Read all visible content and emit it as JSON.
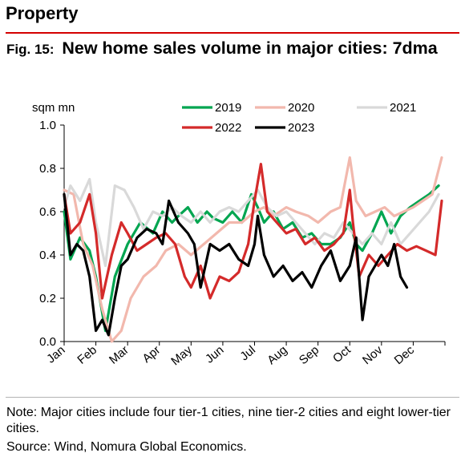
{
  "header": {
    "section": "Property",
    "fig_label": "Fig. 15:",
    "fig_title": "New home sales volume in major cities: 7dma"
  },
  "footer": {
    "note": "Note: Major cities include four tier-1 cities, nine tier-2 cities and eight lower-tier cities.",
    "source": "Source: Wind, Nomura Global Economics."
  },
  "chart_data": {
    "type": "line",
    "ylabel": "sqm mn",
    "ylim": [
      0.0,
      1.0
    ],
    "yticks": [
      "0.0",
      "0.2",
      "0.4",
      "0.6",
      "0.8",
      "1.0"
    ],
    "xlim": [
      0,
      12
    ],
    "categories": [
      "Jan",
      "Feb",
      "Mar",
      "Apr",
      "May",
      "Jun",
      "Jul",
      "Aug",
      "Sep",
      "Oct",
      "Nov",
      "Dec"
    ],
    "x_unit": "month index (0 = start of Jan, 12 = end of Dec)",
    "legend_position": "top",
    "series": [
      {
        "name": "2019",
        "color": "#00a550",
        "width": 3.2,
        "x": [
          0,
          0.2,
          0.5,
          0.8,
          1.0,
          1.3,
          1.6,
          2.0,
          2.4,
          2.8,
          3.1,
          3.4,
          3.6,
          3.9,
          4.2,
          4.5,
          4.7,
          5.0,
          5.3,
          5.6,
          5.9,
          6.1,
          6.3,
          6.6,
          6.9,
          7.2,
          7.5,
          7.8,
          8.1,
          8.4,
          8.7,
          9.0,
          9.2,
          9.4,
          9.7,
          10.0,
          10.3,
          10.6,
          10.9,
          11.2,
          11.5,
          11.8
        ],
        "y": [
          0.6,
          0.38,
          0.48,
          0.42,
          0.3,
          0.05,
          0.3,
          0.45,
          0.55,
          0.5,
          0.6,
          0.55,
          0.58,
          0.62,
          0.55,
          0.6,
          0.57,
          0.55,
          0.6,
          0.55,
          0.68,
          0.62,
          0.55,
          0.6,
          0.52,
          0.55,
          0.48,
          0.5,
          0.45,
          0.45,
          0.48,
          0.55,
          0.45,
          0.42,
          0.5,
          0.6,
          0.5,
          0.58,
          0.62,
          0.65,
          0.68,
          0.72
        ]
      },
      {
        "name": "2020",
        "color": "#f2b8ad",
        "width": 3.2,
        "x": [
          0,
          0.3,
          0.6,
          0.9,
          1.2,
          1.5,
          1.8,
          2.1,
          2.5,
          2.9,
          3.2,
          3.6,
          4.0,
          4.4,
          4.8,
          5.2,
          5.6,
          6.0,
          6.3,
          6.6,
          7.0,
          7.3,
          7.7,
          8.0,
          8.4,
          8.7,
          9.0,
          9.2,
          9.5,
          9.8,
          10.1,
          10.4,
          10.7,
          11.0,
          11.3,
          11.6,
          11.9
        ],
        "y": [
          0.7,
          0.68,
          0.45,
          0.35,
          0.15,
          0.0,
          0.05,
          0.2,
          0.3,
          0.35,
          0.42,
          0.45,
          0.4,
          0.45,
          0.5,
          0.55,
          0.55,
          0.6,
          0.62,
          0.58,
          0.62,
          0.6,
          0.58,
          0.55,
          0.6,
          0.62,
          0.85,
          0.65,
          0.58,
          0.6,
          0.62,
          0.58,
          0.6,
          0.62,
          0.65,
          0.68,
          0.85
        ]
      },
      {
        "name": "2021",
        "color": "#d9d9d9",
        "width": 3.2,
        "x": [
          0,
          0.2,
          0.5,
          0.8,
          1.0,
          1.3,
          1.6,
          1.9,
          2.2,
          2.5,
          2.8,
          3.1,
          3.4,
          3.7,
          4.0,
          4.3,
          4.6,
          4.9,
          5.2,
          5.5,
          5.8,
          6.1,
          6.4,
          6.7,
          7.0,
          7.3,
          7.6,
          7.9,
          8.2,
          8.5,
          8.8,
          9.1,
          9.4,
          9.7,
          10.0,
          10.3,
          10.6,
          10.9,
          11.2,
          11.5,
          11.8
        ],
        "y": [
          0.62,
          0.72,
          0.65,
          0.75,
          0.55,
          0.35,
          0.72,
          0.7,
          0.62,
          0.52,
          0.6,
          0.58,
          0.62,
          0.58,
          0.55,
          0.6,
          0.55,
          0.6,
          0.62,
          0.6,
          0.65,
          0.7,
          0.62,
          0.58,
          0.6,
          0.55,
          0.5,
          0.45,
          0.5,
          0.48,
          0.55,
          0.5,
          0.45,
          0.5,
          0.45,
          0.55,
          0.45,
          0.5,
          0.55,
          0.6,
          0.68
        ]
      },
      {
        "name": "2022",
        "color": "#d42a2a",
        "width": 3.2,
        "x": [
          0,
          0.2,
          0.5,
          0.8,
          1.0,
          1.2,
          1.5,
          1.8,
          2.0,
          2.3,
          2.6,
          2.9,
          3.2,
          3.5,
          3.8,
          4.0,
          4.3,
          4.6,
          4.9,
          5.2,
          5.5,
          5.8,
          6.0,
          6.2,
          6.4,
          6.7,
          7.0,
          7.3,
          7.6,
          7.9,
          8.2,
          8.5,
          8.8,
          9.0,
          9.1,
          9.3,
          9.6,
          9.9,
          10.2,
          10.5,
          10.8,
          11.1,
          11.4,
          11.7,
          11.9
        ],
        "y": [
          0.68,
          0.5,
          0.55,
          0.68,
          0.5,
          0.2,
          0.4,
          0.55,
          0.5,
          0.42,
          0.45,
          0.48,
          0.5,
          0.45,
          0.3,
          0.25,
          0.35,
          0.2,
          0.3,
          0.28,
          0.32,
          0.45,
          0.65,
          0.82,
          0.6,
          0.55,
          0.5,
          0.52,
          0.45,
          0.48,
          0.42,
          0.45,
          0.5,
          0.7,
          0.55,
          0.3,
          0.4,
          0.35,
          0.4,
          0.45,
          0.42,
          0.44,
          0.42,
          0.4,
          0.65
        ]
      },
      {
        "name": "2023",
        "color": "#000000",
        "width": 3.2,
        "x": [
          0,
          0.2,
          0.4,
          0.6,
          0.8,
          1.0,
          1.2,
          1.4,
          1.6,
          1.8,
          2.0,
          2.3,
          2.6,
          2.9,
          3.1,
          3.3,
          3.6,
          3.9,
          4.1,
          4.3,
          4.6,
          4.9,
          5.2,
          5.5,
          5.8,
          6.0,
          6.1,
          6.3,
          6.6,
          6.9,
          7.2,
          7.5,
          7.8,
          8.1,
          8.4,
          8.7,
          9.0,
          9.2,
          9.4,
          9.6,
          9.8,
          10.0,
          10.2,
          10.4,
          10.6,
          10.8
        ],
        "y": [
          0.68,
          0.4,
          0.45,
          0.42,
          0.3,
          0.05,
          0.1,
          0.03,
          0.2,
          0.35,
          0.38,
          0.48,
          0.52,
          0.5,
          0.45,
          0.65,
          0.55,
          0.5,
          0.45,
          0.25,
          0.45,
          0.42,
          0.45,
          0.38,
          0.35,
          0.45,
          0.58,
          0.4,
          0.3,
          0.35,
          0.28,
          0.32,
          0.25,
          0.35,
          0.42,
          0.28,
          0.35,
          0.48,
          0.1,
          0.3,
          0.35,
          0.4,
          0.35,
          0.45,
          0.3,
          0.25
        ]
      }
    ]
  }
}
